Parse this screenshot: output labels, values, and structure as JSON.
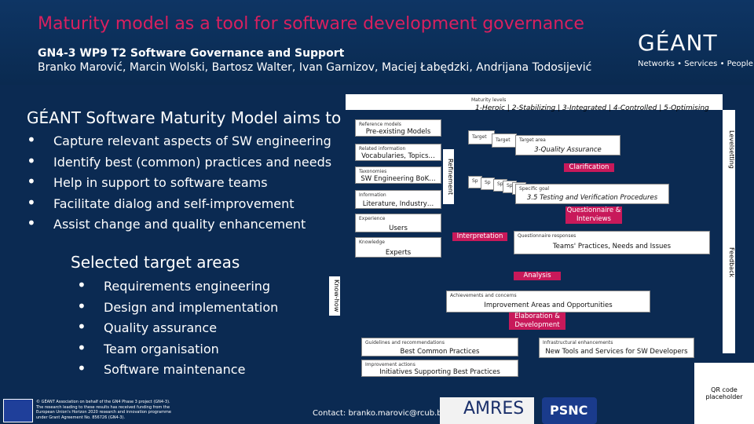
{
  "header": {
    "title": "Maturity model as a tool for software development governance",
    "subtitle": "GN4-3 WP9 T2 Software Governance and Support",
    "authors": "Branko Marović, Marcin Wolski, Bartosz Walter, Ivan Garnizov, Maciej Łabędzki, Andrijana Todosijević",
    "logo_word": "GÉANT",
    "logo_tag": "Networks • Services • People"
  },
  "aims": {
    "heading": "GÉANT Software Maturity Model aims to",
    "items": [
      "Capture relevant aspects of SW engineering",
      "Identify best (common) practices and needs",
      "Help in support to software teams",
      "Facilitate dialog and self-improvement",
      "Assist change and quality enhancement"
    ]
  },
  "areas": {
    "heading": "Selected target areas",
    "items": [
      "Requirements engineering",
      "Design and implementation",
      "Quality assurance",
      "Team organisation",
      "Software maintenance"
    ]
  },
  "diagram": {
    "maturity_small": "Maturity levels",
    "maturity_levels": "1-Heroic | 2-Stabilizing | 3-Integrated | 4-Controlled | 5-Optimising",
    "left_stack": [
      {
        "small": "Reference models",
        "main": "Pre-existing Models"
      },
      {
        "small": "Related information",
        "main": "Vocabularies, Topics…"
      },
      {
        "small": "Taxonomies",
        "main": "SW Engineering BoK…"
      },
      {
        "small": "Information",
        "main": "Literature, Industry…"
      },
      {
        "small": "Experience",
        "main": "Users"
      },
      {
        "small": "Knowledge",
        "main": "Experts"
      }
    ],
    "refinement": "Refinement",
    "levelsetting": "Levelsetting",
    "feedback": "Feedback",
    "knowhow": "Know-how",
    "target_tabs": [
      "Target",
      "Target",
      "Target area"
    ],
    "target_area": "3-Quality Assurance",
    "clarification": "Clarification",
    "sp_tabs": [
      "Sp",
      "Sp",
      "Sp",
      "Sp",
      "Sp"
    ],
    "specific_goal_small": "Specific goal",
    "specific_goal": "3.5 Testing and Verification Procedures",
    "questionnaire": "Questionnaire & Interviews",
    "interpretation": "Interpretation",
    "responses_small": "Questionnaire responses",
    "responses": "Teams' Practices, Needs and Issues",
    "analysis": "Analysis",
    "achievements_small": "Achievements and concerns",
    "achievements": "Improvement Areas and Opportunities",
    "elaboration": "Elaboration & Development",
    "guidelines_small": "Guidelines and recommendations",
    "guidelines": "Best Common Practices",
    "infra_small": "Infrastructural enhancements",
    "infra": "New Tools and Services for SW Developers",
    "improvements_small": "Improvement actions",
    "improvements": "Initiatives Supporting Best Practices"
  },
  "footer": {
    "eu_text": "© GÉANT Association on behalf of the GN4 Phase 3 project (GN4-3). The research leading to these results has received funding from the European Union's Horizon 2020 research and innovation programme under Grant Agreement No. 856726 (GN4-3).",
    "contact": "Contact: branko.marovic@rcub.bg.ac.rs",
    "amres": "AMRES",
    "psnc": "PSNC",
    "qr_label": "QR code placeholder"
  }
}
